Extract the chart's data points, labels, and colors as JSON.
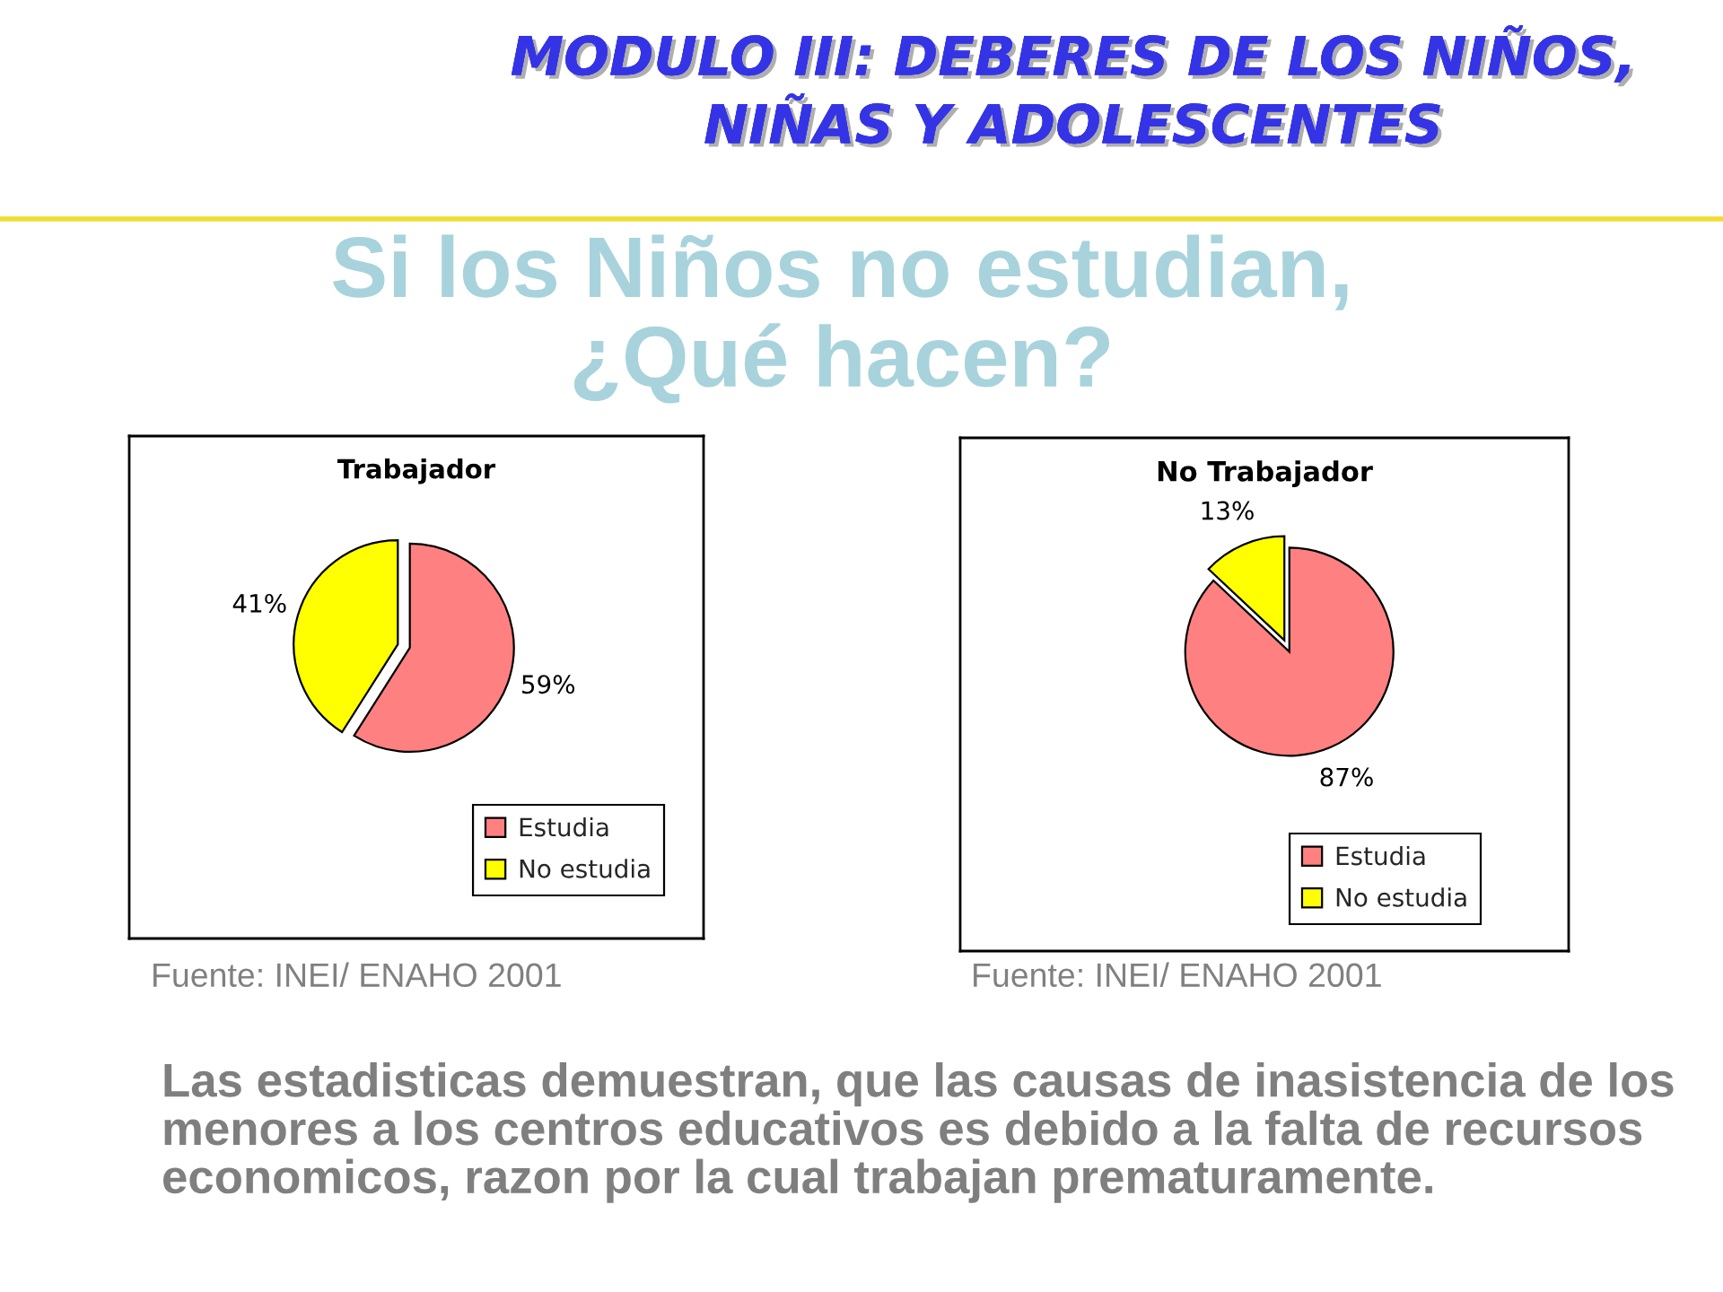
{
  "chart_data": [
    {
      "type": "pie",
      "title": "Trabajador",
      "categories": [
        "Estudia",
        "No estudia"
      ],
      "values": [
        59,
        41
      ],
      "colors": [
        "#ff8080",
        "#ffff00"
      ],
      "value_labels": [
        "59%",
        "41%"
      ],
      "legend": "bottom right",
      "annotations": [
        "MODULO III: DEBERES DE LOS NIÑOS,\nNIÑAS Y ADOLESCENTES",
        "Si los Niños no estudian,\n¿Qué hacen?",
        "Fuente: INEI/ ENAHO 2001"
      ]
    },
    {
      "type": "pie",
      "title": "No Trabajador",
      "categories": [
        "Estudia",
        "No estudia"
      ],
      "values": [
        87,
        13
      ],
      "colors": [
        "#ff8080",
        "#ffff00"
      ],
      "value_labels": [
        "87%",
        "13%"
      ],
      "legend": "bottom right",
      "annotations": [
        "Fuente: INEI/ ENAHO 2001",
        "Las estadisticas demuestran, que las causas de inasistencia de los\nmenores a los centros educativos es debido a la falta de recursos\neconomicos, razon por la cual trabajan prematuramente."
      ]
    }
  ]
}
